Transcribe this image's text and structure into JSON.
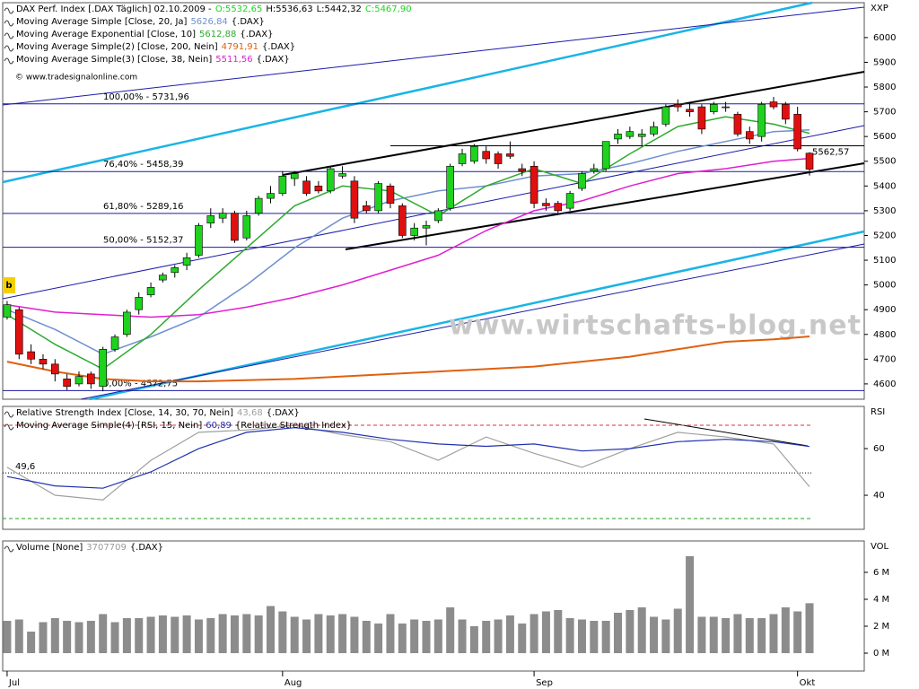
{
  "chart_data": [
    {
      "type": "candlestick",
      "title": "DAX Perf. Index [.DAX  Täglich] 02.10.2009 -",
      "last_candle_labels": [
        "O:5532,65",
        "H:5536,63",
        "L:5442,32",
        "C:5467,90"
      ],
      "source": "© www.tradesignalonline.com",
      "watermark": "www.wirtschafts-blog.net",
      "axis_label": "XXP",
      "badge": "b",
      "categories": [
        "Jul",
        null,
        null,
        null,
        null,
        null,
        null,
        null,
        null,
        null,
        null,
        null,
        null,
        null,
        null,
        null,
        null,
        null,
        null,
        null,
        null,
        null,
        null,
        "Aug",
        null,
        null,
        null,
        null,
        null,
        null,
        null,
        null,
        null,
        null,
        null,
        null,
        null,
        null,
        null,
        null,
        null,
        null,
        null,
        null,
        "Sep",
        null,
        null,
        null,
        null,
        null,
        null,
        null,
        null,
        null,
        null,
        null,
        null,
        null,
        null,
        null,
        null,
        null,
        null,
        null,
        null,
        null,
        "Okt",
        null
      ],
      "candles": [
        [
          4870,
          4935,
          4860,
          4920
        ],
        [
          4900,
          4910,
          4700,
          4720
        ],
        [
          4730,
          4760,
          4680,
          4700
        ],
        [
          4700,
          4720,
          4660,
          4680
        ],
        [
          4680,
          4700,
          4610,
          4640
        ],
        [
          4620,
          4640,
          4575,
          4590
        ],
        [
          4600,
          4650,
          4590,
          4630
        ],
        [
          4640,
          4650,
          4580,
          4600
        ],
        [
          4590,
          4750,
          4570,
          4740
        ],
        [
          4740,
          4800,
          4730,
          4790
        ],
        [
          4800,
          4900,
          4790,
          4890
        ],
        [
          4900,
          4970,
          4880,
          4950
        ],
        [
          4960,
          5010,
          4950,
          4990
        ],
        [
          5020,
          5050,
          5010,
          5040
        ],
        [
          5050,
          5080,
          5030,
          5070
        ],
        [
          5080,
          5130,
          5060,
          5110
        ],
        [
          5120,
          5250,
          5110,
          5240
        ],
        [
          5250,
          5310,
          5230,
          5280
        ],
        [
          5270,
          5310,
          5250,
          5290
        ],
        [
          5290,
          5300,
          5170,
          5180
        ],
        [
          5190,
          5300,
          5180,
          5280
        ],
        [
          5290,
          5360,
          5280,
          5350
        ],
        [
          5350,
          5400,
          5330,
          5370
        ],
        [
          5370,
          5460,
          5360,
          5440
        ],
        [
          5430,
          5460,
          5400,
          5450
        ],
        [
          5420,
          5440,
          5360,
          5370
        ],
        [
          5400,
          5420,
          5370,
          5380
        ],
        [
          5380,
          5480,
          5370,
          5470
        ],
        [
          5440,
          5480,
          5430,
          5450
        ],
        [
          5420,
          5440,
          5250,
          5270
        ],
        [
          5320,
          5340,
          5290,
          5300
        ],
        [
          5300,
          5420,
          5290,
          5410
        ],
        [
          5400,
          5410,
          5310,
          5330
        ],
        [
          5320,
          5330,
          5190,
          5200
        ],
        [
          5200,
          5250,
          5180,
          5230
        ],
        [
          5230,
          5260,
          5160,
          5240
        ],
        [
          5260,
          5310,
          5250,
          5300
        ],
        [
          5310,
          5490,
          5300,
          5480
        ],
        [
          5490,
          5550,
          5480,
          5530
        ],
        [
          5500,
          5570,
          5490,
          5560
        ],
        [
          5540,
          5560,
          5490,
          5510
        ],
        [
          5530,
          5540,
          5470,
          5490
        ],
        [
          5530,
          5580,
          5510,
          5520
        ],
        [
          5470,
          5490,
          5440,
          5460
        ],
        [
          5480,
          5500,
          5310,
          5330
        ],
        [
          5330,
          5350,
          5300,
          5320
        ],
        [
          5330,
          5340,
          5290,
          5300
        ],
        [
          5310,
          5380,
          5300,
          5370
        ],
        [
          5390,
          5460,
          5380,
          5450
        ],
        [
          5460,
          5490,
          5450,
          5470
        ],
        [
          5470,
          5580,
          5460,
          5580
        ],
        [
          5590,
          5630,
          5570,
          5610
        ],
        [
          5600,
          5640,
          5590,
          5620
        ],
        [
          5600,
          5630,
          5560,
          5610
        ],
        [
          5610,
          5660,
          5600,
          5640
        ],
        [
          5650,
          5730,
          5640,
          5720
        ],
        [
          5730,
          5750,
          5700,
          5720
        ],
        [
          5710,
          5740,
          5680,
          5700
        ],
        [
          5720,
          5730,
          5610,
          5630
        ],
        [
          5700,
          5740,
          5690,
          5730
        ],
        [
          5720,
          5740,
          5700,
          5720
        ],
        [
          5690,
          5700,
          5600,
          5610
        ],
        [
          5620,
          5640,
          5570,
          5590
        ],
        [
          5600,
          5740,
          5580,
          5730
        ],
        [
          5740,
          5760,
          5710,
          5720
        ],
        [
          5730,
          5740,
          5650,
          5670
        ],
        [
          5690,
          5720,
          5540,
          5550
        ],
        [
          5532.65,
          5536.63,
          5442.32,
          5467.9
        ]
      ],
      "up_color": "#1ed21e",
      "down_color": "#e01010",
      "xlim": [
        -0.37,
        71.57
      ],
      "ylim": [
        4538,
        6141
      ],
      "yticks": [
        4600,
        4700,
        4800,
        4900,
        5000,
        5100,
        5200,
        5300,
        5400,
        5500,
        5600,
        5700,
        5800,
        5900,
        6000
      ],
      "grid": false,
      "overlay_x": [
        0,
        4,
        8,
        12,
        16,
        20,
        24,
        28,
        32,
        36,
        40,
        44,
        48,
        52,
        56,
        60,
        64,
        67
      ],
      "overlays": [
        {
          "name": "Moving Average Simple [Close, 20, Ja]",
          "value_label": "5626,84",
          "suffix": "{.DAX}",
          "color": "#6f8fcf",
          "values": [
            4900,
            4820,
            4720,
            4790,
            4870,
            5000,
            5150,
            5270,
            5340,
            5380,
            5400,
            5440,
            5450,
            5490,
            5540,
            5580,
            5620,
            5626.84
          ]
        },
        {
          "name": "Moving Average Exponential [Close, 10]",
          "value_label": "5612,88",
          "suffix": "{.DAX}",
          "color": "#2eaa2e",
          "values": [
            4880,
            4760,
            4660,
            4800,
            4980,
            5150,
            5320,
            5400,
            5380,
            5280,
            5400,
            5470,
            5410,
            5530,
            5640,
            5680,
            5650,
            5612.88
          ]
        },
        {
          "name": "Moving Average Simple(2) [Close, 200, Nein]",
          "value_label": "4791,91",
          "suffix": "{.DAX}",
          "color": "#e0600f",
          "values": [
            4690,
            4650,
            4620,
            4610,
            4610,
            4615,
            4620,
            4630,
            4640,
            4650,
            4660,
            4670,
            4690,
            4710,
            4740,
            4770,
            4780,
            4791.91
          ]
        },
        {
          "name": "Moving Average Simple(3) [Close, 38, Nein]",
          "value_label": "5511,56",
          "suffix": "{.DAX}",
          "color": "#e01ed2",
          "values": [
            4920,
            4890,
            4880,
            4870,
            4880,
            4910,
            4950,
            5000,
            5060,
            5120,
            5220,
            5300,
            5340,
            5400,
            5450,
            5470,
            5500,
            5511.56
          ]
        }
      ],
      "levels_color": "#1a1aa8",
      "levels": [
        {
          "value": 5731.96,
          "label": "100,00% - 5731,96"
        },
        {
          "value": 5458.39,
          "label": "76,40% - 5458,39"
        },
        {
          "value": 5289.16,
          "label": "61,80% - 5289,16"
        },
        {
          "value": 5152.37,
          "label": "50,00% - 5152,37"
        },
        {
          "value": 4572.75,
          "label": "0,00% - 4572,75"
        }
      ],
      "price_line": {
        "value": 5562.57,
        "label": "5562,57"
      }
    },
    {
      "type": "line",
      "axis_label": "RSI",
      "x": [
        0,
        4,
        8,
        12,
        16,
        20,
        24,
        28,
        32,
        36,
        40,
        44,
        48,
        52,
        56,
        60,
        64,
        67
      ],
      "xlim": [
        -0.37,
        71.57
      ],
      "series": [
        {
          "name": "Relative Strength Index [Close, 14, 30, 70, Nein]",
          "value_label": "43,68",
          "suffix": "{.DAX}",
          "color": "#a0a0a0",
          "values": [
            52,
            40,
            38,
            55,
            67,
            68,
            70,
            66,
            63,
            55,
            65,
            58,
            52,
            60,
            67,
            65,
            62,
            43.68
          ]
        },
        {
          "name": "Moving Average Simple(4) [RSI, 15, Nein]",
          "value_label": "60,89",
          "suffix": "{Relative Strength Index}",
          "color": "#2030b0",
          "values": [
            48,
            44,
            43,
            50,
            60,
            67,
            69,
            67,
            64,
            62,
            61,
            62,
            59,
            60,
            63,
            64,
            63,
            60.89
          ]
        }
      ],
      "levels": [
        {
          "value": 70,
          "color": "#e03030",
          "style": "dashed"
        },
        {
          "value": 30,
          "color": "#20a020",
          "style": "dashed"
        },
        {
          "value": 49.6,
          "label": "49,6",
          "color": "#000000",
          "style": "dotted"
        }
      ],
      "ylim": [
        25.4,
        78.1
      ],
      "yticks": [
        40,
        60
      ]
    },
    {
      "type": "bar",
      "title": "Volume [None]",
      "value_label": "3707709",
      "suffix": "{.DAX}",
      "axis_label": "VOL",
      "color": "#8c8c8c",
      "xlim": [
        -0.37,
        71.57
      ],
      "values": [
        2.4,
        2.5,
        1.6,
        2.3,
        2.6,
        2.4,
        2.3,
        2.4,
        2.9,
        2.3,
        2.6,
        2.6,
        2.7,
        2.8,
        2.7,
        2.8,
        2.5,
        2.6,
        2.9,
        2.8,
        2.9,
        2.8,
        3.5,
        3.1,
        2.7,
        2.5,
        2.9,
        2.8,
        2.9,
        2.7,
        2.4,
        2.2,
        2.9,
        2.2,
        2.5,
        2.4,
        2.5,
        3.4,
        2.5,
        2.0,
        2.4,
        2.5,
        2.8,
        2.2,
        2.9,
        3.1,
        3.2,
        2.6,
        2.5,
        2.4,
        2.4,
        3.0,
        3.2,
        3.4,
        2.7,
        2.5,
        3.3,
        7.2,
        2.7,
        2.7,
        2.6,
        2.9,
        2.6,
        2.6,
        2.9,
        3.4,
        3.1,
        3.707709
      ],
      "ylim": [
        -1.33,
        8.33
      ],
      "yticks": [
        {
          "value": 0,
          "label": "0 M"
        },
        {
          "value": 2,
          "label": "2 M"
        },
        {
          "value": 4,
          "label": "4 M"
        },
        {
          "value": 6,
          "label": "6 M"
        }
      ]
    }
  ]
}
